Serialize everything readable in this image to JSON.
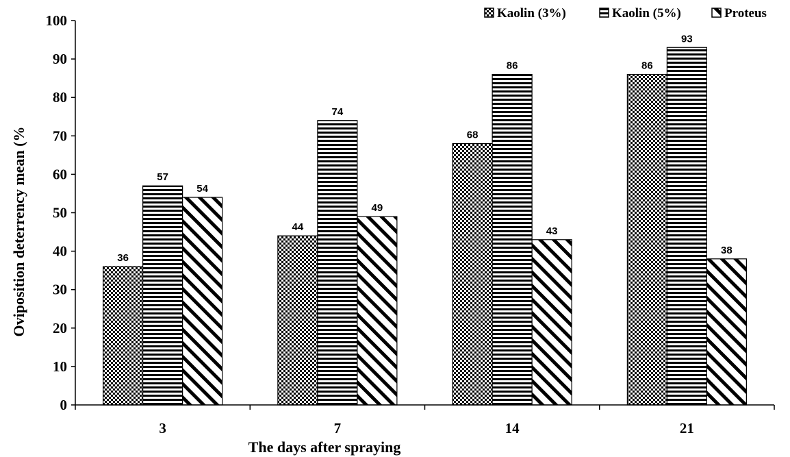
{
  "chart_data": {
    "type": "bar",
    "categories": [
      "3",
      "7",
      "14",
      "21"
    ],
    "series": [
      {
        "name": "Kaolin (3%)",
        "values": [
          36,
          44,
          68,
          86
        ],
        "pattern": "checker"
      },
      {
        "name": "Kaolin (5%)",
        "values": [
          57,
          74,
          86,
          93
        ],
        "pattern": "horizontal-lines"
      },
      {
        "name": "Proteus",
        "values": [
          54,
          49,
          43,
          38
        ],
        "pattern": "diagonal-lines"
      }
    ],
    "title": "",
    "xlabel": "The days after spraying",
    "ylabel": "Oviposition deterrency mean (%",
    "ylim": [
      0,
      100
    ],
    "yticks": [
      "0",
      "10",
      "20",
      "30",
      "40",
      "50",
      "60",
      "70",
      "80",
      "90",
      "100"
    ],
    "grid": false,
    "legend_position": "top-right",
    "colors": {
      "fill": "#000000",
      "background": "#ffffff",
      "axis": "#000000"
    }
  }
}
